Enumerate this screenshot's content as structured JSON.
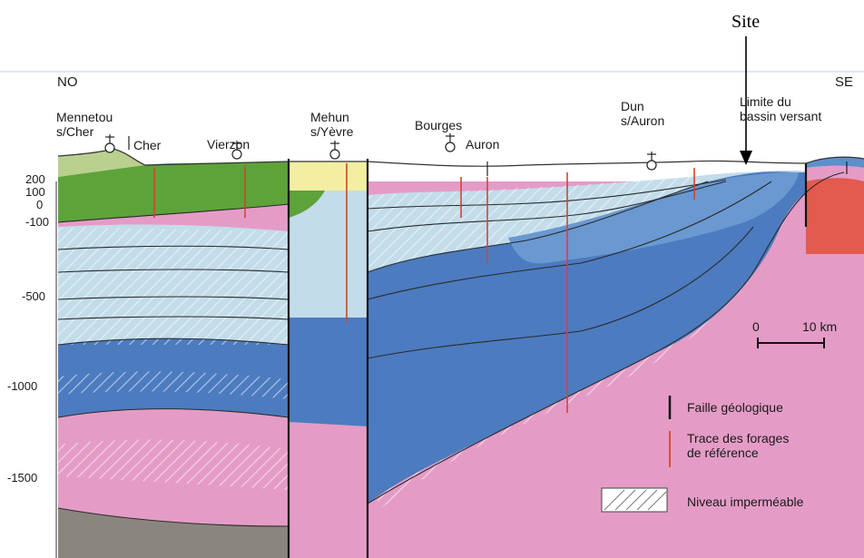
{
  "site_label": "Site",
  "orientation": {
    "left": "NO",
    "right": "SE"
  },
  "depth_labels": [
    "200",
    "100",
    "0",
    "-100",
    "-500",
    "-1000",
    "-1500"
  ],
  "places": {
    "mennetou": "Mennetou\ns/Cher",
    "cher": "Cher",
    "vierzon": "Vierzon",
    "mehun": "Mehun\ns/Yèvre",
    "bourges": "Bourges",
    "auron": "Auron",
    "dun": "Dun\ns/Auron",
    "limite": "Limite du\nbassin versant"
  },
  "scale": {
    "zero": "0",
    "distance": "10 km"
  },
  "legend": [
    {
      "label": "Faille géologique",
      "type": "fault"
    },
    {
      "label": "Trace des forages\nde référence",
      "type": "borehole"
    },
    {
      "label": "Niveau imperméable",
      "type": "hatch"
    }
  ],
  "colors": {
    "light_blue": "#c3dcea",
    "mid_blue": "#5f8fca",
    "deep_blue": "#4c7bbf",
    "pink": "#e49cc6",
    "gray": "#8a867f",
    "green": "#5da33a",
    "light_green": "#b9d08f",
    "yellow": "#f3eea2",
    "red": "#e35a4e",
    "borehole": "#d2452d"
  }
}
